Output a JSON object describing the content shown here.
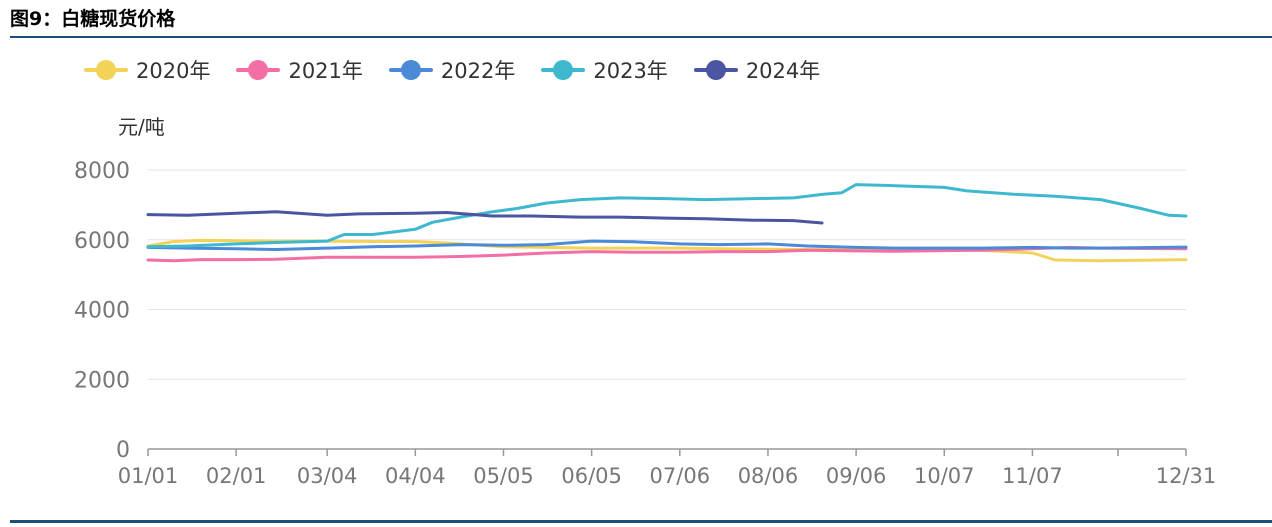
{
  "title": "图9：白糖现货价格",
  "chart_data": {
    "type": "line",
    "ylabel": "元/吨",
    "ylim": [
      0,
      8000
    ],
    "yticks": [
      "0",
      "2000",
      "4000",
      "6000",
      "8000"
    ],
    "xticks": [
      "01/01",
      "02/01",
      "03/04",
      "04/04",
      "05/05",
      "06/05",
      "07/06",
      "08/06",
      "09/06",
      "10/07",
      "11/07",
      "12/31"
    ],
    "grid": true,
    "legend_position": "top-left",
    "series": [
      {
        "name": "2020年",
        "color": "#f2d357",
        "x": [
          "01/01",
          "01/10",
          "01/20",
          "02/01",
          "02/15",
          "03/04",
          "03/20",
          "04/04",
          "04/20",
          "05/05",
          "05/20",
          "06/05",
          "06/20",
          "07/06",
          "07/20",
          "08/06",
          "08/20",
          "09/06",
          "09/20",
          "10/07",
          "10/20",
          "11/01",
          "11/07",
          "11/15",
          "12/01",
          "12/15",
          "12/31"
        ],
        "values": [
          5820,
          5950,
          5980,
          5970,
          5960,
          5960,
          5950,
          5950,
          5880,
          5800,
          5780,
          5760,
          5760,
          5760,
          5740,
          5730,
          5720,
          5730,
          5740,
          5740,
          5700,
          5650,
          5620,
          5420,
          5400,
          5410,
          5430
        ]
      },
      {
        "name": "2021年",
        "color": "#f46ea6",
        "x": [
          "01/01",
          "01/10",
          "01/20",
          "02/01",
          "02/15",
          "03/04",
          "03/20",
          "04/04",
          "04/20",
          "05/05",
          "05/20",
          "06/05",
          "06/20",
          "07/06",
          "07/20",
          "08/06",
          "08/20",
          "09/06",
          "09/20",
          "10/07",
          "10/20",
          "11/07",
          "11/20",
          "12/01",
          "12/31"
        ],
        "values": [
          5420,
          5400,
          5430,
          5430,
          5440,
          5500,
          5500,
          5500,
          5520,
          5560,
          5620,
          5660,
          5640,
          5640,
          5660,
          5660,
          5700,
          5680,
          5670,
          5690,
          5700,
          5740,
          5780,
          5760,
          5740
        ]
      },
      {
        "name": "2022年",
        "color": "#4a8ad6",
        "x": [
          "01/01",
          "01/15",
          "02/01",
          "02/15",
          "03/04",
          "03/20",
          "04/04",
          "04/20",
          "05/05",
          "05/20",
          "06/05",
          "06/20",
          "07/06",
          "07/20",
          "08/06",
          "08/20",
          "09/06",
          "09/20",
          "10/07",
          "10/20",
          "11/07",
          "11/20",
          "12/01",
          "12/31"
        ],
        "values": [
          5780,
          5760,
          5740,
          5720,
          5760,
          5800,
          5820,
          5860,
          5840,
          5860,
          5960,
          5940,
          5880,
          5860,
          5880,
          5820,
          5780,
          5760,
          5760,
          5760,
          5780,
          5760,
          5760,
          5790
        ]
      },
      {
        "name": "2023年",
        "color": "#3db8cf",
        "x": [
          "01/01",
          "01/15",
          "02/01",
          "02/15",
          "03/04",
          "03/10",
          "03/20",
          "04/04",
          "04/10",
          "04/20",
          "05/01",
          "05/10",
          "05/20",
          "06/01",
          "06/15",
          "07/01",
          "07/15",
          "08/01",
          "08/15",
          "08/25",
          "09/01",
          "09/06",
          "09/20",
          "10/07",
          "10/15",
          "11/01",
          "11/15",
          "12/01",
          "12/15",
          "12/25",
          "12/31"
        ],
        "values": [
          5800,
          5820,
          5880,
          5920,
          5960,
          6150,
          6150,
          6300,
          6500,
          6650,
          6800,
          6900,
          7050,
          7150,
          7200,
          7180,
          7150,
          7180,
          7200,
          7300,
          7350,
          7580,
          7550,
          7500,
          7400,
          7300,
          7250,
          7150,
          6900,
          6700,
          6680
        ]
      },
      {
        "name": "2024年",
        "color": "#4b55a2",
        "x": [
          "01/01",
          "01/15",
          "02/01",
          "02/15",
          "03/04",
          "03/15",
          "04/04",
          "04/15",
          "05/01",
          "05/15",
          "06/01",
          "06/15",
          "07/01",
          "07/15",
          "08/01",
          "08/15",
          "08/25"
        ],
        "values": [
          6720,
          6700,
          6760,
          6800,
          6700,
          6740,
          6760,
          6780,
          6680,
          6680,
          6650,
          6650,
          6620,
          6600,
          6560,
          6550,
          6480
        ]
      }
    ]
  }
}
